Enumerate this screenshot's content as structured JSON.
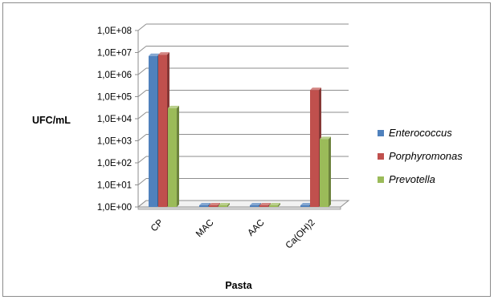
{
  "chart_data": {
    "type": "bar",
    "style": "3d-clustered-column",
    "yscale": "log10",
    "ylim": [
      1,
      100000000
    ],
    "yticks": [
      "1,0E+00",
      "1,0E+01",
      "1,0E+02",
      "1,0E+03",
      "1,0E+04",
      "1,0E+05",
      "1,0E+06",
      "1,0E+07",
      "1,0E+08"
    ],
    "ylabel": "UFC/mL",
    "xlabel": "Pasta",
    "categories": [
      "CP",
      "MAC",
      "AAC",
      "Ca(OH)2"
    ],
    "series": [
      {
        "name": "Enterococcus",
        "color": "#4f81bd",
        "values": [
          7000000,
          1,
          1,
          1
        ]
      },
      {
        "name": "Porphyromonas",
        "color": "#c0504d",
        "values": [
          8000000,
          1,
          1,
          200000
        ]
      },
      {
        "name": "Prevotella",
        "color": "#9bbb59",
        "values": [
          30000,
          1,
          1,
          1200
        ]
      }
    ],
    "grid": true,
    "legend": "right"
  }
}
